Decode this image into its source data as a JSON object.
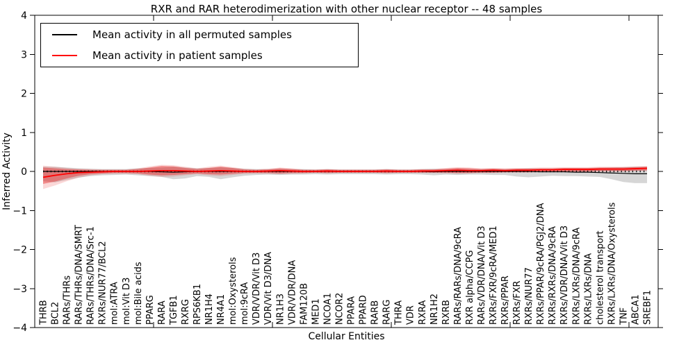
{
  "title": "RXR and RAR heterodimerization with other nuclear receptor -- 48 samples",
  "axes": {
    "xlabel": "Cellular Entities",
    "ylabel": "Inferred Activity",
    "yticks": [
      "4",
      "3",
      "2",
      "1",
      "0",
      "−1",
      "−2",
      "−3",
      "−4"
    ],
    "ylim": [
      -4,
      4
    ]
  },
  "legend": {
    "entries": [
      {
        "label": "Mean activity in all permuted samples",
        "color": "#000000"
      },
      {
        "label": "Mean activity in patient samples",
        "color": "#ff0000"
      }
    ]
  },
  "colors": {
    "permuted_line": "#000000",
    "patient_line": "#ff0000",
    "permuted_fill": "rgba(0,0,0,0.16)",
    "patient_fill": "rgba(230,26,26,0.40)",
    "patient_fill_outer": "rgba(230,26,26,0.17)"
  },
  "chart_data": {
    "type": "line",
    "title": "RXR and RAR heterodimerization with other nuclear receptor -- 48 samples",
    "xlabel": "Cellular Entities",
    "ylabel": "Inferred Activity",
    "ylim": [
      -4,
      4
    ],
    "grid": false,
    "legend_position": "upper left",
    "zero_line_dashed": true,
    "categories": [
      "THRB",
      "BCL2",
      "RARs/THRs",
      "RARs/THRs/DNA/SMRT",
      "RARs/THRs/DNA/Src-1",
      "RXRs/NUR77/BCL2",
      "mol:ATRA",
      "mol:Vit D3",
      "mol:Bile acids",
      "PPARG",
      "RARA",
      "TGFB1",
      "RXRG",
      "RPS6KB1",
      "NR1H4",
      "NR4A1",
      "mol:Oxysterols",
      "mol:9cRA",
      "VDR/VDR/Vit D3",
      "VDR/Vit D3/DNA",
      "NR1H3",
      "VDR/VDR/DNA",
      "FAM120B",
      "MED1",
      "NCOA1",
      "NCOR2",
      "PPARA",
      "PPARD",
      "RARB",
      "RARG",
      "THRA",
      "VDR",
      "RXRA",
      "NR1H2",
      "RXRB",
      "RARs/RARs/DNA/9cRA",
      "RXR alpha/CCPG",
      "RARs/VDR/DNA/Vit D3",
      "RXRs/FXR/9cRA/MED1",
      "RXRs/PPAR",
      "RXRs/FXR",
      "RXRs/NUR77",
      "RXRs/PPAR/9cRA/PGJ2/DNA",
      "RXRs/RXRs/DNA/9cRA",
      "RXRs/VDR/DNA/Vit D3",
      "RXRs/LXRs/DNA/9cRA",
      "RXRs/LXRs/DNA",
      "cholesterol transport",
      "RXRs/LXRs/DNA/Oxysterols",
      "TNF",
      "ABCA1",
      "SREBF1"
    ],
    "series": [
      {
        "name": "Mean activity in all permuted samples",
        "color": "#000000",
        "mean": [
          0,
          0,
          0,
          0,
          0,
          0,
          0,
          0,
          0,
          0,
          -0.01,
          -0.02,
          -0.01,
          0,
          0,
          0,
          0,
          0,
          0,
          0,
          0,
          0,
          0,
          0,
          0,
          0,
          0,
          0,
          0,
          0,
          0,
          0,
          0,
          -0.01,
          0,
          0,
          0,
          0,
          0,
          0,
          0,
          0,
          -0.01,
          -0.01,
          -0.01,
          -0.02,
          -0.02,
          -0.03,
          -0.04,
          -0.05,
          -0.06,
          -0.06
        ],
        "upper": [
          0.12,
          0.12,
          0.1,
          0.08,
          0.07,
          0.06,
          0.06,
          0.06,
          0.08,
          0.09,
          0.1,
          0.12,
          0.1,
          0.08,
          0.09,
          0.11,
          0.09,
          0.07,
          0.06,
          0.06,
          0.07,
          0.06,
          0.06,
          0.05,
          0.06,
          0.05,
          0.05,
          0.05,
          0.05,
          0.06,
          0.05,
          0.05,
          0.06,
          0.07,
          0.06,
          0.07,
          0.06,
          0.06,
          0.07,
          0.06,
          0.07,
          0.08,
          0.07,
          0.07,
          0.08,
          0.08,
          0.08,
          0.09,
          0.1,
          0.11,
          0.12,
          0.12
        ],
        "lower": [
          -0.25,
          -0.28,
          -0.22,
          -0.16,
          -0.12,
          -0.1,
          -0.09,
          -0.08,
          -0.1,
          -0.12,
          -0.14,
          -0.2,
          -0.18,
          -0.12,
          -0.14,
          -0.2,
          -0.15,
          -0.11,
          -0.09,
          -0.08,
          -0.09,
          -0.08,
          -0.08,
          -0.07,
          -0.08,
          -0.07,
          -0.07,
          -0.07,
          -0.07,
          -0.08,
          -0.07,
          -0.07,
          -0.08,
          -0.1,
          -0.08,
          -0.09,
          -0.08,
          -0.08,
          -0.09,
          -0.09,
          -0.13,
          -0.15,
          -0.13,
          -0.11,
          -0.12,
          -0.12,
          -0.13,
          -0.14,
          -0.2,
          -0.27,
          -0.3,
          -0.3
        ]
      },
      {
        "name": "Mean activity in patient samples",
        "color": "#ff0000",
        "mean": [
          -0.15,
          -0.1,
          -0.06,
          -0.03,
          -0.02,
          -0.01,
          0,
          0,
          0,
          0.01,
          0.02,
          0.02,
          0.01,
          0,
          0.01,
          0.02,
          0.01,
          0,
          0,
          0.01,
          0.02,
          0.01,
          0,
          0,
          0.01,
          0,
          0,
          0,
          0,
          0.01,
          0,
          0,
          0.01,
          0.01,
          0.02,
          0.03,
          0.02,
          0.02,
          0.03,
          0.02,
          0.03,
          0.03,
          0.04,
          0.04,
          0.05,
          0.05,
          0.05,
          0.06,
          0.06,
          0.06,
          0.07,
          0.08
        ],
        "upper": [
          0.1,
          0.08,
          0.06,
          0.05,
          0.04,
          0.04,
          0.04,
          0.04,
          0.06,
          0.1,
          0.14,
          0.13,
          0.09,
          0.06,
          0.09,
          0.12,
          0.09,
          0.05,
          0.04,
          0.05,
          0.08,
          0.06,
          0.04,
          0.04,
          0.05,
          0.04,
          0.04,
          0.04,
          0.04,
          0.05,
          0.04,
          0.04,
          0.05,
          0.05,
          0.07,
          0.09,
          0.08,
          0.06,
          0.07,
          0.06,
          0.07,
          0.07,
          0.08,
          0.08,
          0.09,
          0.09,
          0.09,
          0.1,
          0.1,
          0.1,
          0.11,
          0.12
        ],
        "lower": [
          -0.32,
          -0.26,
          -0.18,
          -0.11,
          -0.07,
          -0.05,
          -0.04,
          -0.04,
          -0.05,
          -0.08,
          -0.1,
          -0.09,
          -0.07,
          -0.05,
          -0.07,
          -0.08,
          -0.06,
          -0.04,
          -0.04,
          -0.04,
          -0.05,
          -0.04,
          -0.04,
          -0.03,
          -0.04,
          -0.03,
          -0.03,
          -0.03,
          -0.03,
          -0.04,
          -0.03,
          -0.03,
          -0.03,
          -0.03,
          -0.03,
          -0.04,
          -0.04,
          -0.03,
          -0.03,
          -0.02,
          -0.02,
          -0.02,
          -0.01,
          -0.01,
          0,
          0,
          0,
          0.01,
          0.01,
          0.01,
          0.02,
          0.03
        ],
        "outer_upper": [
          0.15,
          0.12,
          0.09,
          0.07,
          0.06,
          0.05,
          0.05,
          0.05,
          0.08,
          0.13,
          0.17,
          0.16,
          0.12,
          0.08,
          0.12,
          0.15,
          0.11,
          0.07,
          0.05,
          0.07,
          0.1,
          0.08,
          0.05,
          0.05,
          0.06,
          0.05,
          0.05,
          0.05,
          0.05,
          0.06,
          0.05,
          0.05,
          0.06,
          0.06,
          0.09,
          0.11,
          0.1,
          0.08,
          0.09,
          0.08,
          0.09,
          0.09,
          0.1,
          0.1,
          0.11,
          0.11,
          0.11,
          0.12,
          0.12,
          0.12,
          0.13,
          0.14
        ],
        "outer_lower": [
          -0.45,
          -0.36,
          -0.25,
          -0.16,
          -0.1,
          -0.07,
          -0.06,
          -0.06,
          -0.07,
          -0.11,
          -0.14,
          -0.13,
          -0.1,
          -0.07,
          -0.1,
          -0.12,
          -0.09,
          -0.06,
          -0.05,
          -0.06,
          -0.07,
          -0.06,
          -0.05,
          -0.04,
          -0.05,
          -0.04,
          -0.04,
          -0.04,
          -0.04,
          -0.05,
          -0.04,
          -0.04,
          -0.04,
          -0.04,
          -0.05,
          -0.06,
          -0.05,
          -0.04,
          -0.04,
          -0.03,
          -0.03,
          -0.03,
          -0.02,
          -0.02,
          -0.01,
          -0.01,
          -0.01,
          0,
          0,
          0,
          0.01,
          0.01
        ]
      }
    ]
  }
}
